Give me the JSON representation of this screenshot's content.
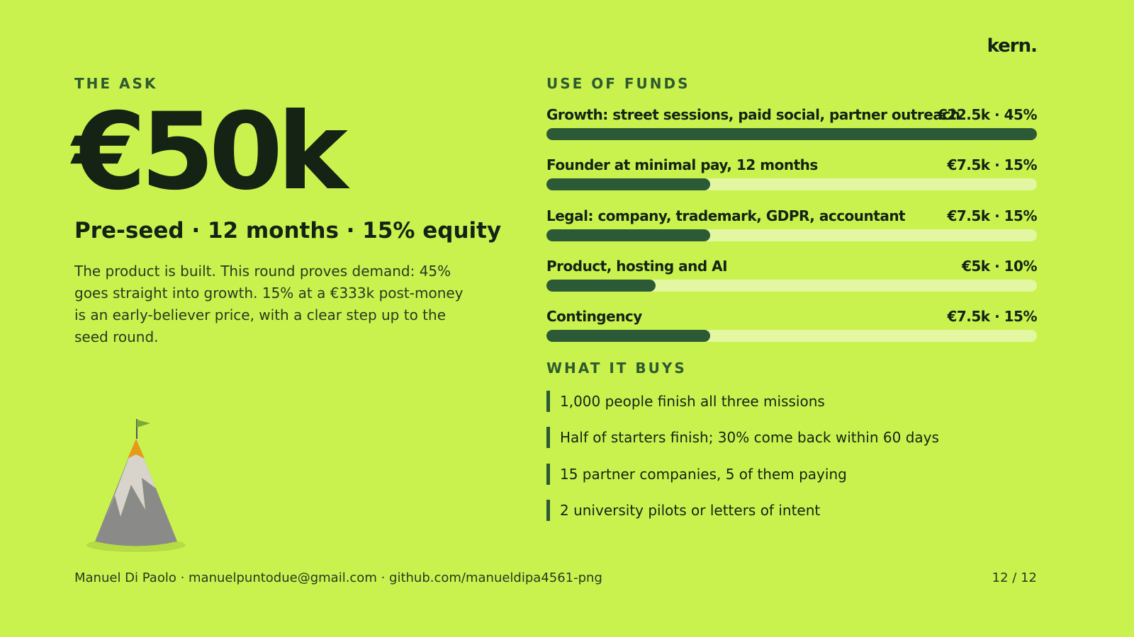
{
  "brand": "kern.",
  "ask": {
    "heading": "THE ASK",
    "amount": "€50k",
    "subtitle": "Pre-seed · 12 months · 15% equity",
    "body": "The product is built. This round proves demand: 45% goes straight into growth. 15% at a €333k post-money is an early-believer price, with a clear step up to the seed round."
  },
  "use_of_funds": {
    "heading": "USE OF FUNDS",
    "items": [
      {
        "label": "Growth: street sessions, paid social, partner outreach",
        "amount_label": "€22.5k · 45%",
        "share": 45
      },
      {
        "label": "Founder at minimal pay, 12 months",
        "amount_label": "€7.5k · 15%",
        "share": 15
      },
      {
        "label": "Legal: company, trademark, GDPR, accountant",
        "amount_label": "€7.5k · 15%",
        "share": 15
      },
      {
        "label": "Product, hosting and AI",
        "amount_label": "€5k · 10%",
        "share": 10
      },
      {
        "label": "Contingency",
        "amount_label": "€7.5k · 15%",
        "share": 15
      }
    ]
  },
  "what_it_buys": {
    "heading": "WHAT IT BUYS",
    "items": [
      "1,000 people finish all three missions",
      "Half of starters finish; 30% come back within 60 days",
      "15 partner companies, 5 of them paying",
      "2 university pilots or letters of intent"
    ]
  },
  "footer": {
    "contact": "Manuel Di Paolo · manuelpuntodue@gmail.com · github.com/manueldipa4561-png",
    "page": "12 / 12"
  }
}
